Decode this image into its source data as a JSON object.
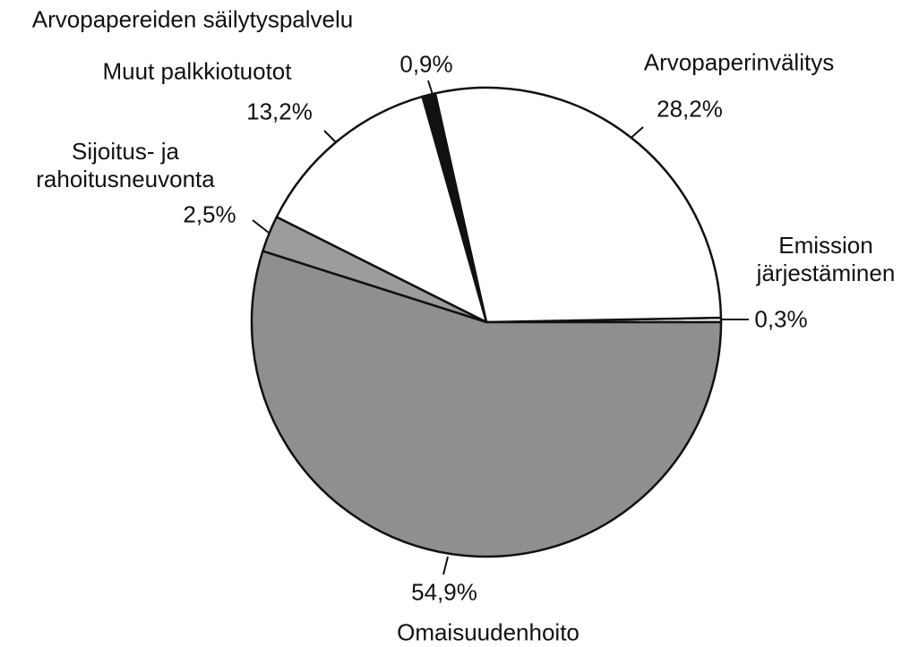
{
  "chart_data": {
    "type": "pie",
    "categories": [
      "Emission järjestäminen",
      "Arvopaperinvälitys",
      "Arvopapereiden säilytyspalvelu",
      "Muut palkkiotuotot",
      "Sijoitus- ja rahoitusneuvonta",
      "Omaisuudenhoito"
    ],
    "values": [
      0.3,
      28.2,
      0.9,
      13.2,
      2.5,
      54.9
    ],
    "value_labels": [
      "0,3%",
      "28,2%",
      "0,9%",
      "13,2%",
      "2,5%",
      "54,9%"
    ],
    "colors": [
      "#ffffff",
      "#ffffff",
      "#111111",
      "#ffffff",
      "#9c9c9c",
      "#8f8f8f"
    ]
  }
}
